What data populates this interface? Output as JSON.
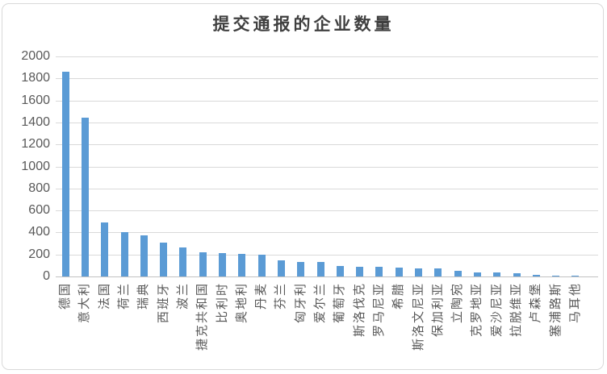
{
  "chart": {
    "title": "提交通报的企业数量"
  },
  "chart_data": {
    "type": "bar",
    "title": "提交通报的企业数量",
    "categories": [
      "德国",
      "意大利",
      "法国",
      "荷兰",
      "瑞典",
      "西班牙",
      "波兰",
      "捷克共和国",
      "比利时",
      "奥地利",
      "丹麦",
      "芬兰",
      "匈牙利",
      "爱尔兰",
      "葡萄牙",
      "斯洛伐克",
      "罗马尼亚",
      "希腊",
      "斯洛文尼亚",
      "保加利亚",
      "立陶宛",
      "克罗地亚",
      "爱沙尼亚",
      "拉脱维亚",
      "卢森堡",
      "塞浦路斯",
      "马耳他"
    ],
    "values": [
      1860,
      1440,
      490,
      405,
      370,
      310,
      265,
      220,
      210,
      205,
      200,
      150,
      132,
      130,
      95,
      90,
      85,
      80,
      75,
      72,
      50,
      40,
      35,
      28,
      18,
      8,
      3
    ],
    "xlabel": "",
    "ylabel": "",
    "ylim": [
      0,
      2000
    ],
    "yticks": [
      0,
      200,
      400,
      600,
      800,
      1000,
      1200,
      1400,
      1600,
      1800,
      2000
    ],
    "grid": true,
    "legend": false,
    "x_label_rotation_deg": -90,
    "colors": {
      "bar": "#5b9bd5",
      "grid": "#d9d9d9",
      "baseline": "#c3c3c3",
      "axis_text": "#595959",
      "title_text": "#3f3f3f"
    }
  }
}
